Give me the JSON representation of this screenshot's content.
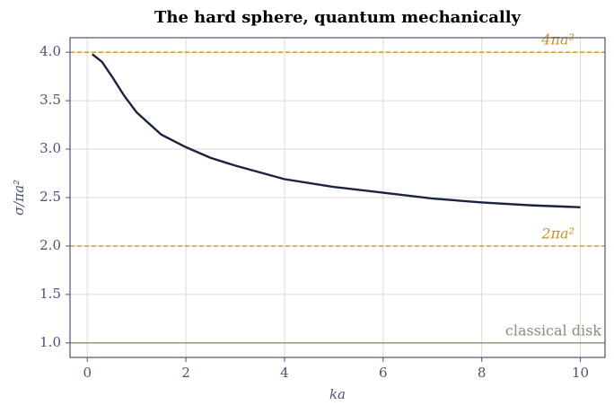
{
  "chart_data": {
    "type": "line",
    "title": "The hard sphere, quantum mechanically",
    "x_label": "ka",
    "y_label": "σ/πa²",
    "xlim": [
      -0.35,
      10.5
    ],
    "ylim": [
      0.85,
      4.15
    ],
    "xticks": [
      0,
      2,
      4,
      6,
      8,
      10
    ],
    "yticks": [
      {
        "value": 1,
        "label": "1.0"
      },
      {
        "value": 1.5,
        "label": "1.5"
      },
      {
        "value": 2,
        "label": "2.0"
      },
      {
        "value": 2.5,
        "label": "2.5"
      },
      {
        "value": 3,
        "label": "3.0"
      },
      {
        "value": 3.5,
        "label": "3.5"
      },
      {
        "value": 4,
        "label": "4.0"
      }
    ],
    "grid": true,
    "x": [
      0.1,
      0.3,
      0.5,
      0.75,
      1,
      1.5,
      2,
      2.5,
      3,
      4,
      5,
      6,
      7,
      8,
      9,
      10
    ],
    "series": [
      {
        "color": "#1a2340",
        "values": [
          3.98,
          3.9,
          3.75,
          3.55,
          3.38,
          3.15,
          3.02,
          2.91,
          2.83,
          2.69,
          2.61,
          2.55,
          2.49,
          2.45,
          2.42,
          2.4
        ]
      }
    ],
    "reference_lines": [
      {
        "value": 4,
        "label": "4πa²",
        "color": "#c8922a",
        "dashed": true
      },
      {
        "value": 2,
        "label": "2πa²",
        "color": "#c8922a",
        "dashed": true
      },
      {
        "value": 1,
        "label": "classical disk",
        "color": "#8f8a78",
        "dashed": false
      }
    ]
  }
}
